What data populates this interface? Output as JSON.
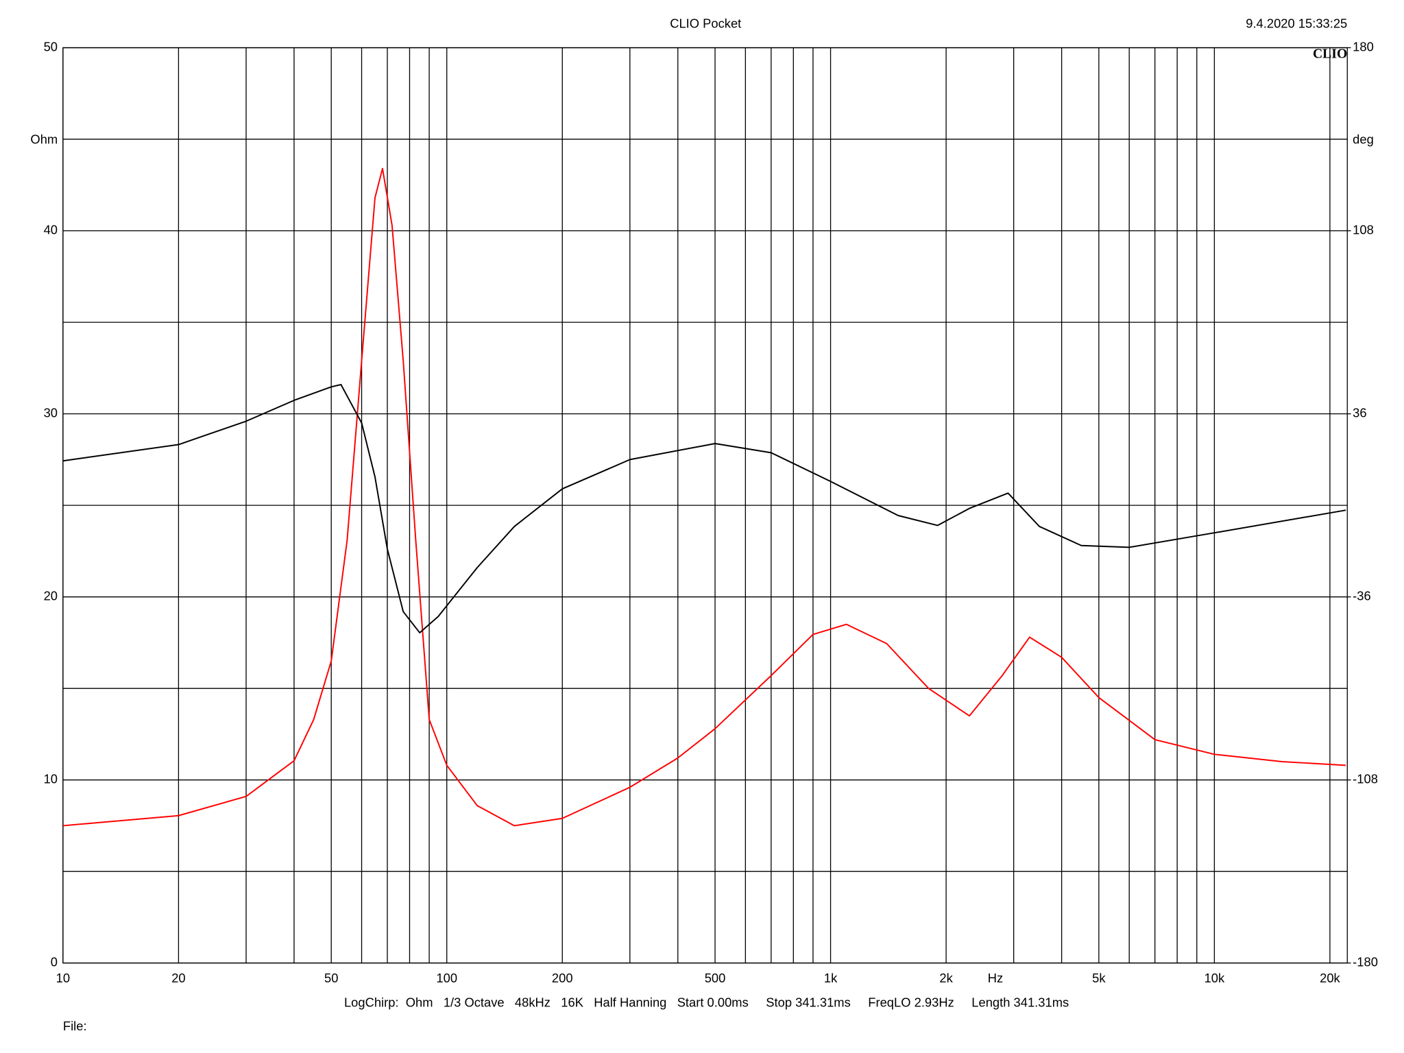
{
  "chart_data": {
    "type": "line",
    "title": "CLIO Pocket",
    "timestamp": "9.4.2020 15:33:25",
    "logo": "CLIO",
    "y_label": "Ohm",
    "y2_label": "deg",
    "x_label": "Hz",
    "footer": "LogChirp:  Ohm   1/3 Octave   48kHz   16K   Half Hanning   Start 0.00ms     Stop 341.31ms     FreqLO 2.93Hz     Length 341.31ms",
    "file_label": "File:",
    "x_log": true,
    "grid": true,
    "xlim": [
      10,
      22200
    ],
    "xticks": [
      10,
      20,
      50,
      100,
      200,
      500,
      {
        "value": 1000,
        "label": "1k"
      },
      {
        "value": 2000,
        "label": "2k"
      },
      {
        "value": 5000,
        "label": "5k"
      },
      {
        "value": 10000,
        "label": "10k"
      },
      {
        "value": 20000,
        "label": "20k"
      }
    ],
    "xgrid": [
      30,
      40,
      60,
      70,
      80,
      90,
      300,
      400,
      600,
      700,
      800,
      900,
      3000,
      4000,
      6000,
      7000,
      8000,
      9000
    ],
    "ylim": [
      0,
      50
    ],
    "yticks": [
      0,
      10,
      20,
      30,
      40,
      50
    ],
    "ygrid": [
      5,
      15,
      25,
      35,
      45
    ],
    "y2lim": [
      -180,
      180
    ],
    "y2ticks": [
      -180,
      -108,
      -36,
      36,
      108,
      180
    ],
    "series": [
      {
        "color": "#ff0000",
        "x": [
          10,
          20,
          30,
          40,
          45,
          50,
          55,
          60,
          65,
          68,
          72,
          77,
          83,
          90,
          100,
          120,
          150,
          200,
          300,
          400,
          500,
          700,
          900,
          1100,
          1400,
          1800,
          2300,
          2800,
          3300,
          4000,
          5000,
          7000,
          10000,
          15000,
          22000
        ],
        "values": [
          7.5,
          8.05,
          9.1,
          11.05,
          13.3,
          16.5,
          23.1,
          32.9,
          41.8,
          43.4,
          40.3,
          32.9,
          23.1,
          13.3,
          10.8,
          8.6,
          7.5,
          7.9,
          9.6,
          11.2,
          12.8,
          15.7,
          17.95,
          18.5,
          17.45,
          15.0,
          13.5,
          15.7,
          17.8,
          16.7,
          14.5,
          12.2,
          11.4,
          11.0,
          10.8
        ]
      },
      {
        "color": "#000000",
        "axis": "y2",
        "x": [
          10,
          20,
          30,
          40,
          50,
          53,
          60,
          65,
          70,
          77,
          85,
          95,
          120,
          150,
          200,
          300,
          500,
          700,
          1000,
          1500,
          1900,
          2300,
          2900,
          3500,
          4500,
          6000,
          10000,
          22000
        ],
        "values": [
          17.5,
          23.9,
          33.1,
          41.3,
          46.6,
          47.5,
          32.4,
          11.2,
          -17.2,
          -41.8,
          -50.1,
          -43.7,
          -24.5,
          -8.3,
          6.5,
          18.0,
          24.3,
          20.7,
          9.4,
          -4.0,
          -7.9,
          -1.2,
          4.8,
          -8.3,
          -15.8,
          -16.5,
          -10.8,
          -1.9
        ]
      }
    ]
  }
}
